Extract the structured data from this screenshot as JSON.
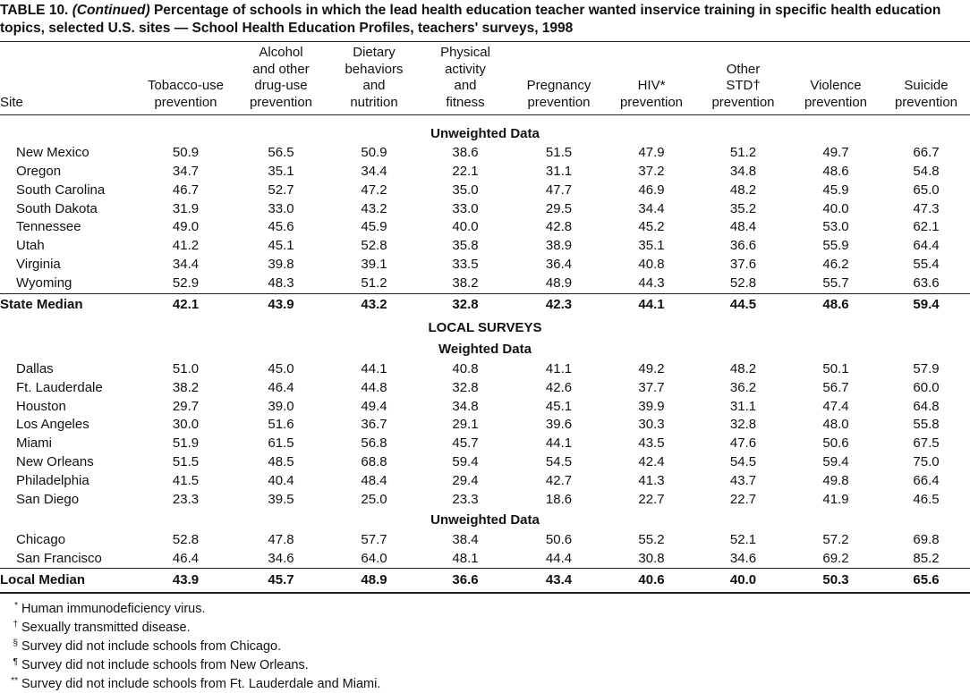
{
  "title": {
    "label": "TABLE 10.",
    "note": "(Continued)",
    "text": "Percentage of schools in which the lead health education teacher wanted inservice training in specific health education topics, selected U.S. sites — School Health Education Profiles, teachers' surveys, 1998"
  },
  "table": {
    "headers": [
      [
        "Site"
      ],
      [
        "Tobacco-use",
        "prevention"
      ],
      [
        "Alcohol",
        "and other",
        "drug-use",
        "prevention"
      ],
      [
        "Dietary",
        "behaviors",
        "and",
        "nutrition"
      ],
      [
        "Physical",
        "activity",
        "and",
        "fitness"
      ],
      [
        "Pregnancy",
        "prevention"
      ],
      [
        "HIV*",
        "prevention"
      ],
      [
        "Other",
        "STD†",
        "prevention"
      ],
      [
        "Violence",
        "prevention"
      ],
      [
        "Suicide",
        "prevention"
      ]
    ],
    "rows": [
      {
        "group": "Unweighted Data"
      },
      {
        "site": "New Mexico",
        "values": [
          "50.9",
          "56.5",
          "50.9",
          "38.6",
          "51.5",
          "47.9",
          "51.2",
          "49.7",
          "66.7"
        ]
      },
      {
        "site": "Oregon",
        "values": [
          "34.7",
          "35.1",
          "34.4",
          "22.1",
          "31.1",
          "37.2",
          "34.8",
          "48.6",
          "54.8"
        ]
      },
      {
        "site": "South Carolina",
        "values": [
          "46.7",
          "52.7",
          "47.2",
          "35.0",
          "47.7",
          "46.9",
          "48.2",
          "45.9",
          "65.0"
        ]
      },
      {
        "site": "South Dakota",
        "values": [
          "31.9",
          "33.0",
          "43.2",
          "33.0",
          "29.5",
          "34.4",
          "35.2",
          "40.0",
          "47.3"
        ]
      },
      {
        "site": "Tennessee",
        "values": [
          "49.0",
          "45.6",
          "45.9",
          "40.0",
          "42.8",
          "45.2",
          "48.4",
          "53.0",
          "62.1"
        ]
      },
      {
        "site": "Utah",
        "values": [
          "41.2",
          "45.1",
          "52.8",
          "35.8",
          "38.9",
          "35.1",
          "36.6",
          "55.9",
          "64.4"
        ]
      },
      {
        "site": "Virginia",
        "values": [
          "34.4",
          "39.8",
          "39.1",
          "33.5",
          "36.4",
          "40.8",
          "37.6",
          "46.2",
          "55.4"
        ]
      },
      {
        "site": "Wyoming",
        "values": [
          "52.9",
          "48.3",
          "51.2",
          "38.2",
          "48.9",
          "44.3",
          "52.8",
          "55.7",
          "63.6"
        ]
      },
      {
        "median": "State Median",
        "values": [
          "42.1",
          "43.9",
          "43.2",
          "32.8",
          "42.3",
          "44.1",
          "44.5",
          "48.6",
          "59.4"
        ]
      },
      {
        "group": "LOCAL SURVEYS"
      },
      {
        "group": "Weighted Data"
      },
      {
        "site": "Dallas",
        "values": [
          "51.0",
          "45.0",
          "44.1",
          "40.8",
          "41.1",
          "49.2",
          "48.2",
          "50.1",
          "57.9"
        ]
      },
      {
        "site": "Ft. Lauderdale",
        "values": [
          "38.2",
          "46.4",
          "44.8",
          "32.8",
          "42.6",
          "37.7",
          "36.2",
          "56.7",
          "60.0"
        ]
      },
      {
        "site": "Houston",
        "values": [
          "29.7",
          "39.0",
          "49.4",
          "34.8",
          "45.1",
          "39.9",
          "31.1",
          "47.4",
          "64.8"
        ]
      },
      {
        "site": "Los Angeles",
        "values": [
          "30.0",
          "51.6",
          "36.7",
          "29.1",
          "39.6",
          "30.3",
          "32.8",
          "48.0",
          "55.8"
        ]
      },
      {
        "site": "Miami",
        "values": [
          "51.9",
          "61.5",
          "56.8",
          "45.7",
          "44.1",
          "43.5",
          "47.6",
          "50.6",
          "67.5"
        ]
      },
      {
        "site": "New Orleans",
        "values": [
          "51.5",
          "48.5",
          "68.8",
          "59.4",
          "54.5",
          "42.4",
          "54.5",
          "59.4",
          "75.0"
        ]
      },
      {
        "site": "Philadelphia",
        "values": [
          "41.5",
          "40.4",
          "48.4",
          "29.4",
          "42.7",
          "41.3",
          "43.7",
          "49.8",
          "66.4"
        ]
      },
      {
        "site": "San Diego",
        "values": [
          "23.3",
          "39.5",
          "25.0",
          "23.3",
          "18.6",
          "22.7",
          "22.7",
          "41.9",
          "46.5"
        ]
      },
      {
        "group": "Unweighted Data"
      },
      {
        "site": "Chicago",
        "values": [
          "52.8",
          "47.8",
          "57.7",
          "38.4",
          "50.6",
          "55.2",
          "52.1",
          "57.2",
          "69.8"
        ]
      },
      {
        "site": "San Francisco",
        "values": [
          "46.4",
          "34.6",
          "64.0",
          "48.1",
          "44.4",
          "30.8",
          "34.6",
          "69.2",
          "85.2"
        ]
      },
      {
        "median": "Local Median",
        "values": [
          "43.9",
          "45.7",
          "48.9",
          "36.6",
          "43.4",
          "40.6",
          "40.0",
          "50.3",
          "65.6"
        ]
      }
    ]
  },
  "footnotes": [
    {
      "mark": "*",
      "text": "Human immunodeficiency virus."
    },
    {
      "mark": "†",
      "text": "Sexually transmitted disease."
    },
    {
      "mark": "§",
      "text": "Survey did not include schools from Chicago."
    },
    {
      "mark": "¶",
      "text": "Survey did not include schools from New Orleans."
    },
    {
      "mark": "**",
      "text": "Survey did not include schools from Ft. Lauderdale and Miami."
    }
  ]
}
